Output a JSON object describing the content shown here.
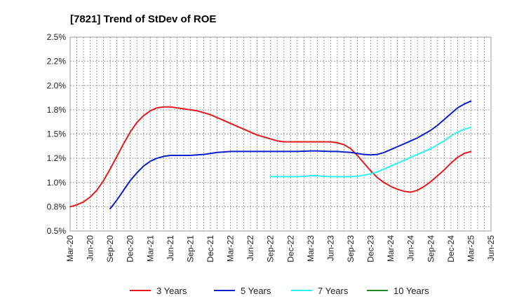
{
  "chart_data": {
    "type": "line",
    "title": "[7821]  Trend of StDev of ROE",
    "xlabel": "",
    "ylabel": "",
    "x_ticks": [
      "Mar-20",
      "Jun-20",
      "Sep-20",
      "Dec-20",
      "Mar-21",
      "Jun-21",
      "Sep-21",
      "Dec-21",
      "Mar-22",
      "Jun-22",
      "Sep-22",
      "Dec-22",
      "Mar-23",
      "Jun-23",
      "Sep-23",
      "Dec-23",
      "Mar-24",
      "Jun-24",
      "Sep-24",
      "Dec-24",
      "Mar-25",
      "Jun-25"
    ],
    "y_ticks": [
      "0.5%",
      "0.8%",
      "1.0%",
      "1.2%",
      "1.5%",
      "1.8%",
      "2.0%",
      "2.2%",
      "2.5%"
    ],
    "ylim": [
      0.5,
      2.5
    ],
    "grid": true,
    "legend_position": "bottom",
    "series": [
      {
        "name": "3 Years",
        "color": "#e31a1c",
        "x": [
          "2020-03",
          "2020-04",
          "2020-05",
          "2020-06",
          "2020-07",
          "2020-08",
          "2020-09",
          "2020-10",
          "2020-11",
          "2020-12",
          "2021-01",
          "2021-02",
          "2021-03",
          "2021-04",
          "2021-05",
          "2021-06",
          "2021-07",
          "2021-08",
          "2021-09",
          "2021-10",
          "2021-11",
          "2021-12",
          "2022-01",
          "2022-02",
          "2022-03",
          "2022-04",
          "2022-05",
          "2022-06",
          "2022-07",
          "2022-08",
          "2022-09",
          "2022-10",
          "2022-11",
          "2022-12",
          "2023-01",
          "2023-02",
          "2023-03",
          "2023-04",
          "2023-05",
          "2023-06",
          "2023-07",
          "2023-08",
          "2023-09",
          "2023-10",
          "2023-11",
          "2023-12",
          "2024-01",
          "2024-02",
          "2024-03",
          "2024-04",
          "2024-05",
          "2024-06",
          "2024-07",
          "2024-08",
          "2024-09",
          "2024-10",
          "2024-11",
          "2024-12",
          "2025-01",
          "2025-02",
          "2025-03"
        ],
        "values": [
          0.75,
          0.77,
          0.8,
          0.85,
          0.92,
          1.02,
          1.14,
          1.27,
          1.4,
          1.52,
          1.62,
          1.69,
          1.74,
          1.77,
          1.78,
          1.78,
          1.77,
          1.76,
          1.75,
          1.74,
          1.72,
          1.7,
          1.67,
          1.64,
          1.61,
          1.58,
          1.55,
          1.52,
          1.49,
          1.47,
          1.45,
          1.43,
          1.42,
          1.42,
          1.42,
          1.42,
          1.42,
          1.42,
          1.42,
          1.42,
          1.41,
          1.39,
          1.35,
          1.28,
          1.2,
          1.12,
          1.05,
          1.0,
          0.96,
          0.93,
          0.91,
          0.9,
          0.92,
          0.96,
          1.01,
          1.07,
          1.13,
          1.2,
          1.26,
          1.3,
          1.32
        ]
      },
      {
        "name": "5 Years",
        "color": "#0a1fc8",
        "x": [
          "2020-09",
          "2020-10",
          "2020-11",
          "2020-12",
          "2021-01",
          "2021-02",
          "2021-03",
          "2021-04",
          "2021-05",
          "2021-06",
          "2021-07",
          "2021-08",
          "2021-09",
          "2021-10",
          "2021-11",
          "2021-12",
          "2022-01",
          "2022-02",
          "2022-03",
          "2022-04",
          "2022-05",
          "2022-06",
          "2022-07",
          "2022-08",
          "2022-09",
          "2022-10",
          "2022-11",
          "2022-12",
          "2023-01",
          "2023-02",
          "2023-03",
          "2023-04",
          "2023-05",
          "2023-06",
          "2023-07",
          "2023-08",
          "2023-09",
          "2023-10",
          "2023-11",
          "2023-12",
          "2024-01",
          "2024-02",
          "2024-03",
          "2024-04",
          "2024-05",
          "2024-06",
          "2024-07",
          "2024-08",
          "2024-09",
          "2024-10",
          "2024-11",
          "2024-12",
          "2025-01",
          "2025-02",
          "2025-03"
        ],
        "values": [
          0.73,
          0.82,
          0.92,
          1.02,
          1.1,
          1.17,
          1.22,
          1.25,
          1.27,
          1.28,
          1.28,
          1.28,
          1.28,
          1.285,
          1.29,
          1.3,
          1.31,
          1.315,
          1.32,
          1.32,
          1.32,
          1.32,
          1.32,
          1.32,
          1.32,
          1.32,
          1.32,
          1.32,
          1.32,
          1.323,
          1.326,
          1.326,
          1.323,
          1.32,
          1.32,
          1.315,
          1.31,
          1.3,
          1.29,
          1.285,
          1.29,
          1.31,
          1.34,
          1.37,
          1.4,
          1.43,
          1.46,
          1.5,
          1.54,
          1.59,
          1.65,
          1.71,
          1.77,
          1.81,
          1.84
        ]
      },
      {
        "name": "7 Years",
        "color": "#2ef0f0",
        "x": [
          "2022-09",
          "2022-10",
          "2022-11",
          "2022-12",
          "2023-01",
          "2023-02",
          "2023-03",
          "2023-04",
          "2023-05",
          "2023-06",
          "2023-07",
          "2023-08",
          "2023-09",
          "2023-10",
          "2023-11",
          "2023-12",
          "2024-01",
          "2024-02",
          "2024-03",
          "2024-04",
          "2024-05",
          "2024-06",
          "2024-07",
          "2024-08",
          "2024-09",
          "2024-10",
          "2024-11",
          "2024-12",
          "2025-01",
          "2025-02",
          "2025-03"
        ],
        "values": [
          1.06,
          1.06,
          1.06,
          1.06,
          1.06,
          1.065,
          1.07,
          1.07,
          1.065,
          1.06,
          1.06,
          1.06,
          1.06,
          1.065,
          1.075,
          1.09,
          1.11,
          1.14,
          1.17,
          1.2,
          1.23,
          1.26,
          1.29,
          1.32,
          1.35,
          1.39,
          1.43,
          1.48,
          1.52,
          1.55,
          1.57
        ]
      },
      {
        "name": "10 Years",
        "color": "#1f8a1f",
        "x": [],
        "values": []
      }
    ]
  }
}
